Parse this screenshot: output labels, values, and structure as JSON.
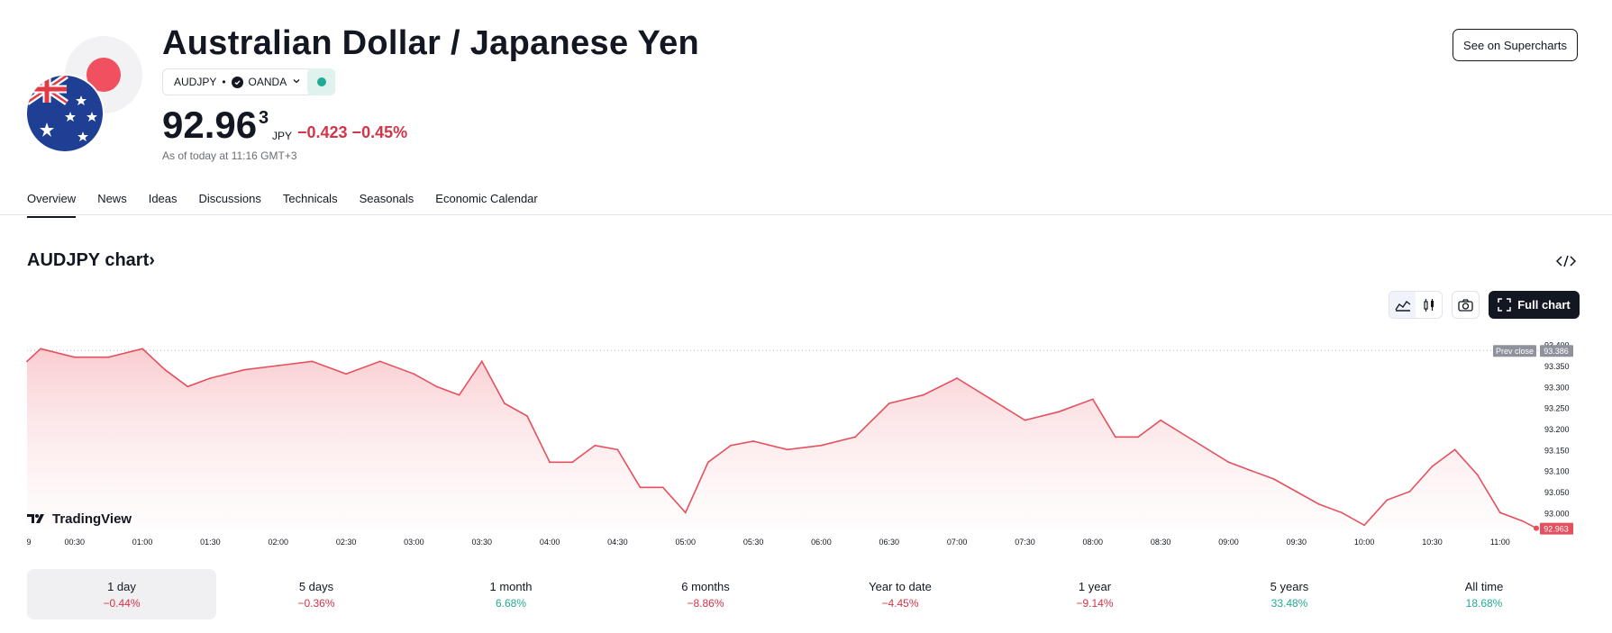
{
  "header": {
    "title": "Australian Dollar / Japanese Yen",
    "symbol": "AUDJPY",
    "separator": "•",
    "exchange": "OANDA",
    "price_main": "92.96",
    "price_sup": "3",
    "currency": "JPY",
    "change": "−0.423 −0.45%",
    "as_of": "As of today at 11:16 GMT+3",
    "supercharts_label": "See on Supercharts"
  },
  "tabs": [
    "Overview",
    "News",
    "Ideas",
    "Discussions",
    "Technicals",
    "Seasonals",
    "Economic Calendar"
  ],
  "chart_section": {
    "heading": "AUDJPY chart›",
    "full_chart_label": "Full chart",
    "watermark": "TradingView"
  },
  "colors": {
    "negative": "#d13547",
    "positive": "#22ab94",
    "line": "#e5505e"
  },
  "periods": [
    {
      "label": "1 day",
      "value": "−0.44%",
      "dir": "neg"
    },
    {
      "label": "5 days",
      "value": "−0.36%",
      "dir": "neg"
    },
    {
      "label": "1 month",
      "value": "6.68%",
      "dir": "pos"
    },
    {
      "label": "6 months",
      "value": "−8.86%",
      "dir": "neg"
    },
    {
      "label": "Year to date",
      "value": "−4.45%",
      "dir": "neg"
    },
    {
      "label": "1 year",
      "value": "−9.14%",
      "dir": "neg"
    },
    {
      "label": "5 years",
      "value": "33.48%",
      "dir": "pos"
    },
    {
      "label": "All time",
      "value": "18.68%",
      "dir": "pos"
    }
  ],
  "chart_data": {
    "type": "area",
    "title": "",
    "x": [
      "00:09",
      "00:15",
      "00:30",
      "00:45",
      "01:00",
      "01:10",
      "01:20",
      "01:30",
      "01:45",
      "02:00",
      "02:15",
      "02:30",
      "02:45",
      "03:00",
      "03:10",
      "03:20",
      "03:30",
      "03:40",
      "03:50",
      "04:00",
      "04:10",
      "04:20",
      "04:30",
      "04:40",
      "04:50",
      "05:00",
      "05:10",
      "05:20",
      "05:30",
      "05:45",
      "06:00",
      "06:15",
      "06:30",
      "06:45",
      "07:00",
      "07:15",
      "07:30",
      "07:45",
      "08:00",
      "08:10",
      "08:20",
      "08:30",
      "08:45",
      "09:00",
      "09:10",
      "09:20",
      "09:30",
      "09:40",
      "09:50",
      "10:00",
      "10:10",
      "10:20",
      "10:30",
      "10:40",
      "10:50",
      "11:00",
      "11:10",
      "11:16"
    ],
    "values": [
      93.36,
      93.39,
      93.37,
      93.37,
      93.39,
      93.34,
      93.3,
      93.32,
      93.34,
      93.35,
      93.36,
      93.33,
      93.36,
      93.33,
      93.3,
      93.28,
      93.36,
      93.26,
      93.23,
      93.12,
      93.12,
      93.16,
      93.15,
      93.06,
      93.06,
      93.0,
      93.12,
      93.16,
      93.17,
      93.15,
      93.16,
      93.18,
      93.26,
      93.28,
      93.32,
      93.27,
      93.22,
      93.24,
      93.27,
      93.18,
      93.18,
      93.22,
      93.17,
      93.12,
      93.1,
      93.08,
      93.05,
      93.02,
      93.0,
      92.97,
      93.03,
      93.05,
      93.11,
      93.15,
      93.09,
      93.0,
      92.98,
      92.963
    ],
    "x_tick_labels": [
      "9",
      "00:30",
      "01:00",
      "01:30",
      "02:00",
      "02:30",
      "03:00",
      "03:30",
      "04:00",
      "04:30",
      "05:00",
      "05:30",
      "06:00",
      "06:30",
      "07:00",
      "07:30",
      "08:00",
      "08:30",
      "09:00",
      "09:30",
      "10:00",
      "10:30",
      "11:00"
    ],
    "y_tick_labels": [
      "93.400",
      "93.350",
      "93.300",
      "93.250",
      "93.200",
      "93.150",
      "93.100",
      "93.050",
      "93.000"
    ],
    "y_ticks": [
      93.4,
      93.35,
      93.3,
      93.25,
      93.2,
      93.15,
      93.1,
      93.05,
      93.0
    ],
    "ylim": [
      92.96,
      93.41
    ],
    "prev_close": {
      "label": "Prev close",
      "value": "93.386"
    },
    "last_price": "92.963",
    "grid": false
  }
}
